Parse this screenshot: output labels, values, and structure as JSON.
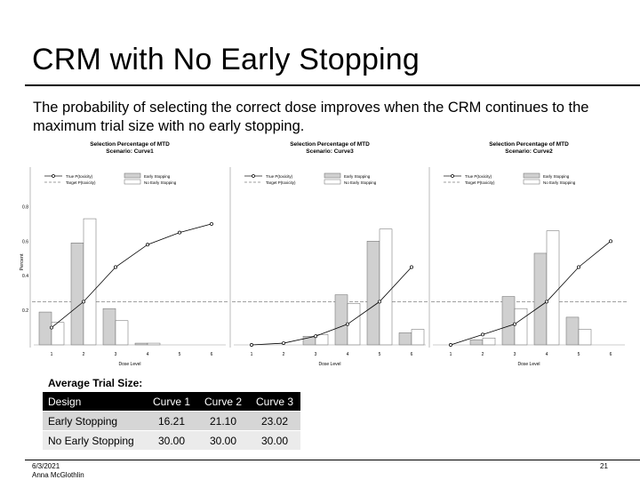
{
  "slide": {
    "title": "CRM with No Early Stopping",
    "body": "The probability of selecting the correct dose improves when the CRM continues to the maximum trial size with no early stopping.",
    "footer_date": "6/3/2021",
    "footer_author": "Anna McGlothlin",
    "page_number": "21"
  },
  "chart_data": [
    {
      "type": "bar",
      "title": "Selection Percentage of MTD",
      "subtitle": "Scenario: Curve1",
      "xlabel": "Dose Level",
      "ylabel": "Percent",
      "categories": [
        "1",
        "2",
        "3",
        "4",
        "5",
        "6"
      ],
      "ylim": [
        0,
        0.9
      ],
      "yticks": [
        "0.2",
        "0.4",
        "0.6",
        "0.8"
      ],
      "series": [
        {
          "name": "Early Stopping",
          "values": [
            0.19,
            0.59,
            0.21,
            0.01,
            0.0,
            0.0
          ]
        },
        {
          "name": "No Early Stopping",
          "values": [
            0.13,
            0.73,
            0.14,
            0.01,
            0.0,
            0.0
          ]
        },
        {
          "name": "True P(toxicity)",
          "values": [
            0.1,
            0.25,
            0.45,
            0.58,
            0.65,
            0.7
          ]
        }
      ],
      "target": 0.25,
      "legend": [
        "True P(toxicity)",
        "Target P(toxicity)",
        "Early Stopping",
        "No Early Stopping"
      ]
    },
    {
      "type": "bar",
      "title": "Selection Percentage of MTD",
      "subtitle": "Scenario: Curve3",
      "xlabel": "Dose Level",
      "ylabel": "",
      "categories": [
        "1",
        "2",
        "3",
        "4",
        "5",
        "6"
      ],
      "ylim": [
        0,
        0.9
      ],
      "yticks": [],
      "series": [
        {
          "name": "Early Stopping",
          "values": [
            0.0,
            0.0,
            0.05,
            0.29,
            0.6,
            0.07
          ]
        },
        {
          "name": "No Early Stopping",
          "values": [
            0.0,
            0.0,
            0.06,
            0.24,
            0.67,
            0.09
          ]
        },
        {
          "name": "True P(toxicity)",
          "values": [
            0.0,
            0.01,
            0.05,
            0.12,
            0.25,
            0.45
          ]
        }
      ],
      "target": 0.25,
      "legend": [
        "True P(toxicity)",
        "Target P(toxicity)",
        "Early Stopping",
        "No Early Stopping"
      ]
    },
    {
      "type": "bar",
      "title": "Selection Percentage of MTD",
      "subtitle": "Scenario: Curve2",
      "xlabel": "Dose Level",
      "ylabel": "",
      "categories": [
        "1",
        "2",
        "3",
        "4",
        "5",
        "6"
      ],
      "ylim": [
        0,
        0.9
      ],
      "yticks": [],
      "series": [
        {
          "name": "Early Stopping",
          "values": [
            0.0,
            0.03,
            0.28,
            0.53,
            0.16,
            0.0
          ]
        },
        {
          "name": "No Early Stopping",
          "values": [
            0.0,
            0.04,
            0.21,
            0.66,
            0.09,
            0.0
          ]
        },
        {
          "name": "True P(toxicity)",
          "values": [
            0.0,
            0.06,
            0.12,
            0.25,
            0.45,
            0.6
          ]
        }
      ],
      "target": 0.25,
      "legend": [
        "True P(toxicity)",
        "Target P(toxicity)",
        "Early Stopping",
        "No Early Stopping"
      ]
    }
  ],
  "trial_size": {
    "label": "Average Trial Size:",
    "header": [
      "Design",
      "Curve 1",
      "Curve 2",
      "Curve 3"
    ],
    "rows": [
      [
        "Early Stopping",
        "16.21",
        "21.10",
        "23.02"
      ],
      [
        "No Early Stopping",
        "30.00",
        "30.00",
        "30.00"
      ]
    ]
  },
  "colors": {
    "early_bar": "#d0d0d0",
    "no_early_bar": "#ffffff",
    "target_line": "#808080",
    "table_header": "#000000"
  }
}
